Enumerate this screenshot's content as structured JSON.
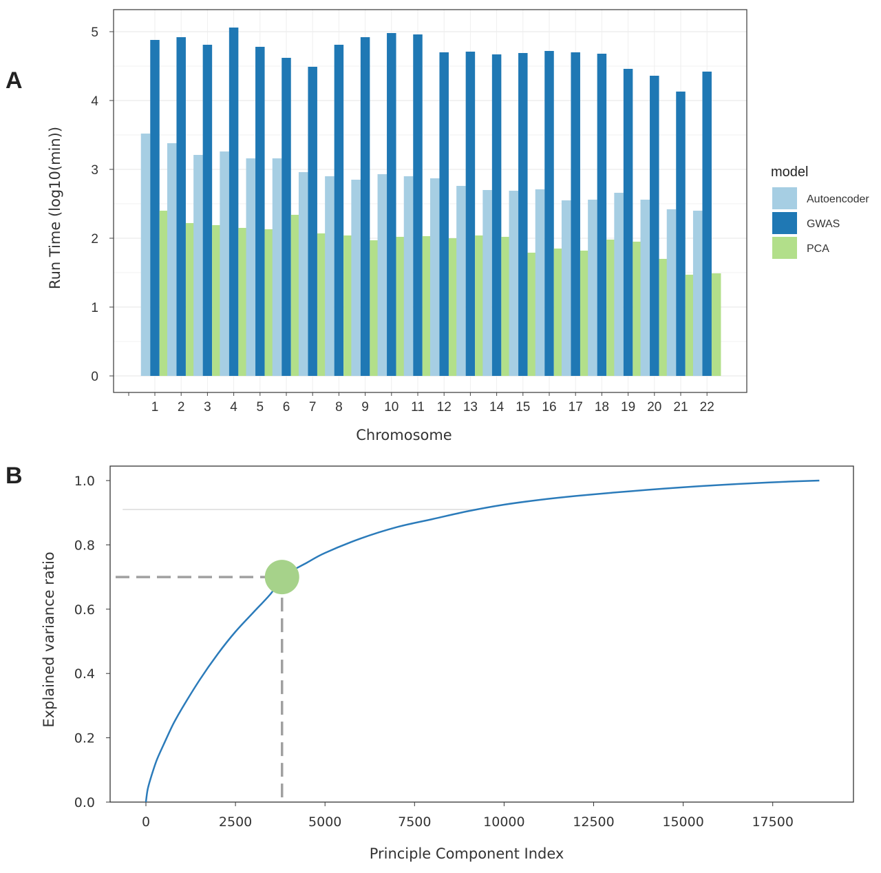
{
  "panels": {
    "a_label": "A",
    "b_label": "B"
  },
  "chart_data": [
    {
      "type": "bar",
      "panel": "A",
      "title": "",
      "xlabel": "Chromosome",
      "ylabel": "Run Time (log10(min))",
      "ylim": [
        0,
        5.3
      ],
      "yticks": [
        0,
        1,
        2,
        3,
        4,
        5
      ],
      "grid": true,
      "legend": {
        "title": "model",
        "position": "right"
      },
      "categories": [
        "1",
        "2",
        "3",
        "4",
        "5",
        "6",
        "7",
        "8",
        "9",
        "10",
        "11",
        "12",
        "13",
        "14",
        "15",
        "16",
        "17",
        "18",
        "19",
        "20",
        "21",
        "22"
      ],
      "series": [
        {
          "name": "Autoencoder",
          "color": "#a6cee3",
          "values": [
            3.52,
            3.38,
            3.21,
            3.26,
            3.16,
            3.16,
            2.96,
            2.9,
            2.85,
            2.93,
            2.9,
            2.87,
            2.76,
            2.7,
            2.69,
            2.71,
            2.55,
            2.56,
            2.66,
            2.56,
            2.42,
            2.4
          ]
        },
        {
          "name": "GWAS",
          "color": "#1f78b4",
          "values": [
            4.88,
            4.92,
            4.81,
            5.06,
            4.78,
            4.62,
            4.49,
            4.81,
            4.92,
            4.98,
            4.96,
            4.7,
            4.71,
            4.67,
            4.69,
            4.72,
            4.7,
            4.68,
            4.46,
            4.36,
            4.13,
            4.42
          ]
        },
        {
          "name": "PCA",
          "color": "#b2df8a",
          "values": [
            2.4,
            2.22,
            2.19,
            2.15,
            2.13,
            2.34,
            2.07,
            2.04,
            1.97,
            2.02,
            2.03,
            2.0,
            2.04,
            2.02,
            1.79,
            1.85,
            1.82,
            1.98,
            1.95,
            1.7,
            1.47,
            1.49
          ]
        }
      ]
    },
    {
      "type": "line",
      "panel": "B",
      "title": "",
      "xlabel": "Principle Component  Index",
      "ylabel": "Explained variance ratio",
      "xlim": [
        -1000,
        19800
      ],
      "ylim": [
        0,
        1.05
      ],
      "xticks": [
        0,
        2500,
        5000,
        7500,
        10000,
        12500,
        15000,
        17500
      ],
      "xtick_labels": [
        "0",
        "2500",
        "5000",
        "7500",
        "10000",
        "12500",
        "15000",
        "17500"
      ],
      "yticks": [
        0,
        0.2,
        0.4,
        0.6,
        0.8,
        1.0
      ],
      "ytick_labels": [
        "0.0",
        "0.2",
        "0.4",
        "0.6",
        "0.8",
        "1.0"
      ],
      "line_color": "#2b7bba",
      "series": [
        {
          "x": [
            0,
            50,
            150,
            300,
            500,
            750,
            1000,
            1500,
            2000,
            2500,
            3000,
            3500,
            3800,
            4000,
            4500,
            5000,
            6000,
            7000,
            8000,
            9000,
            10000,
            11000,
            12000,
            13000,
            14000,
            15000,
            16000,
            17000,
            18000,
            18800
          ],
          "y": [
            0.0,
            0.04,
            0.08,
            0.13,
            0.18,
            0.24,
            0.29,
            0.38,
            0.46,
            0.53,
            0.59,
            0.65,
            0.7,
            0.715,
            0.745,
            0.775,
            0.82,
            0.855,
            0.88,
            0.905,
            0.925,
            0.94,
            0.952,
            0.962,
            0.971,
            0.979,
            0.986,
            0.992,
            0.997,
            1.0
          ]
        }
      ],
      "marker": {
        "x": 3800,
        "y": 0.7,
        "color": "#a6d28a"
      },
      "reference_line_y": 0.91,
      "reference_line_x_range": [
        -650,
        9200
      ]
    }
  ]
}
